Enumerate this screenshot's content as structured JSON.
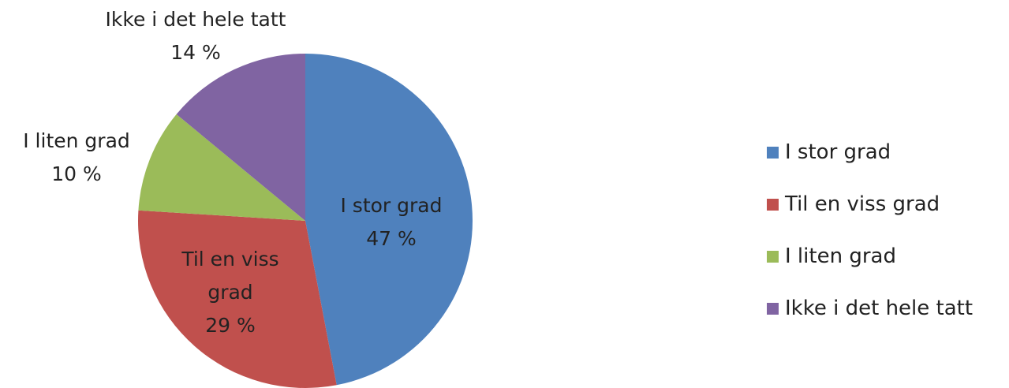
{
  "chart_data": {
    "type": "pie",
    "categories": [
      "I stor grad",
      "Til en viss grad",
      "I liten grad",
      "Ikke i det hele tatt"
    ],
    "values": [
      47,
      29,
      10,
      14
    ],
    "value_labels": [
      "47 %",
      "29 %",
      "10 %",
      "14 %"
    ],
    "colors": [
      "#4f81bd",
      "#c0504d",
      "#9bbb59",
      "#8064a2"
    ],
    "legend": "right"
  }
}
